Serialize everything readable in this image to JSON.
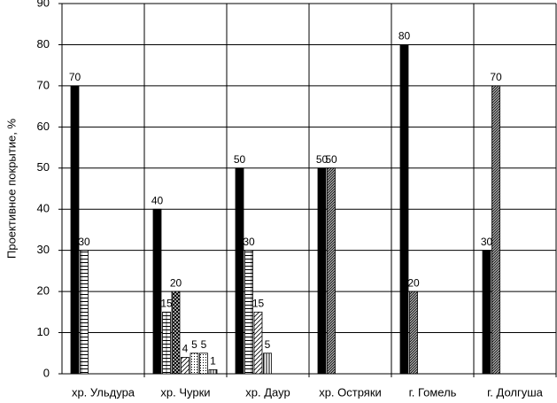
{
  "chart_data": {
    "type": "bar",
    "y_label": "Проективное покрытие, %",
    "categories": [
      "хр. Ульдура",
      "хр. Чурки",
      "хр. Даур",
      "хр. Остряки",
      "г. Гомель",
      "г. Долгуша"
    ],
    "series": [
      {
        "pattern": "solid",
        "values": [
          70,
          40,
          50,
          50,
          80,
          30
        ]
      },
      {
        "pattern": "brick",
        "values": [
          30,
          15,
          30,
          null,
          null,
          null
        ]
      },
      {
        "pattern": "cross",
        "values": [
          null,
          20,
          null,
          null,
          null,
          null
        ]
      },
      {
        "pattern": "diag",
        "values": [
          null,
          4,
          15,
          null,
          null,
          null
        ]
      },
      {
        "pattern": "dots",
        "values": [
          null,
          5,
          null,
          null,
          null,
          null
        ]
      },
      {
        "pattern": "dots2",
        "values": [
          null,
          5,
          null,
          null,
          null,
          null
        ]
      },
      {
        "pattern": "vert",
        "values": [
          null,
          1,
          5,
          null,
          null,
          null
        ]
      },
      {
        "pattern": "dense",
        "values": [
          null,
          null,
          null,
          50,
          20,
          70
        ]
      }
    ],
    "ylim": [
      0,
      90
    ],
    "yticks": [
      0,
      10,
      20,
      30,
      40,
      50,
      60,
      70,
      80,
      90
    ],
    "grid": true
  }
}
